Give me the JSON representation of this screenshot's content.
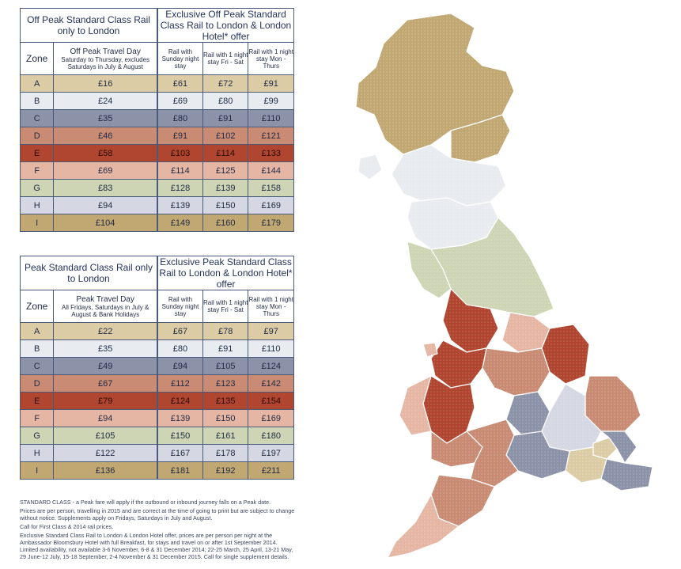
{
  "offpeak": {
    "left_title": "Off Peak Standard Class Rail only to London",
    "right_title": "Exclusive Off Peak Standard Class Rail to London & London Hotel* offer",
    "zone_header": "Zone",
    "travel_title": "Off Peak Travel Day",
    "travel_sub": "Saturday to Thursday, excludes Saturdays in July & August",
    "col3": "Rail with Sunday night stay",
    "col4": "Rail with 1 night stay Fri - Sat",
    "col5": "Rail with 1 night stay Mon - Thurs",
    "rows": [
      {
        "zone": "A",
        "rail": "£16",
        "sun": "£61",
        "frisat": "£72",
        "monthu": "£91"
      },
      {
        "zone": "B",
        "rail": "£24",
        "sun": "£69",
        "frisat": "£80",
        "monthu": "£99"
      },
      {
        "zone": "C",
        "rail": "£35",
        "sun": "£80",
        "frisat": "£91",
        "monthu": "£110"
      },
      {
        "zone": "D",
        "rail": "£46",
        "sun": "£91",
        "frisat": "£102",
        "monthu": "£121"
      },
      {
        "zone": "E",
        "rail": "£58",
        "sun": "£103",
        "frisat": "£114",
        "monthu": "£133"
      },
      {
        "zone": "F",
        "rail": "£69",
        "sun": "£114",
        "frisat": "£125",
        "monthu": "£144"
      },
      {
        "zone": "G",
        "rail": "£83",
        "sun": "£128",
        "frisat": "£139",
        "monthu": "£158"
      },
      {
        "zone": "H",
        "rail": "£94",
        "sun": "£139",
        "frisat": "£150",
        "monthu": "£169"
      },
      {
        "zone": "I",
        "rail": "£104",
        "sun": "£149",
        "frisat": "£160",
        "monthu": "£179"
      }
    ]
  },
  "peak": {
    "left_title": "Peak Standard Class Rail only to London",
    "right_title": "Exclusive Peak Standard Class Rail to London & London Hotel* offer",
    "zone_header": "Zone",
    "travel_title": "Peak Travel Day",
    "travel_sub": "All Fridays, Saturdays in July & August & Bank Holidays",
    "col3": "Rail with Sunday night stay",
    "col4": "Rail with 1 night stay Fri - Sat",
    "col5": "Rail with 1 night stay Mon - Thurs",
    "rows": [
      {
        "zone": "A",
        "rail": "£22",
        "sun": "£67",
        "frisat": "£78",
        "monthu": "£97"
      },
      {
        "zone": "B",
        "rail": "£35",
        "sun": "£80",
        "frisat": "£91",
        "monthu": "£110"
      },
      {
        "zone": "C",
        "rail": "£49",
        "sun": "£94",
        "frisat": "£105",
        "monthu": "£124"
      },
      {
        "zone": "D",
        "rail": "£67",
        "sun": "£112",
        "frisat": "£123",
        "monthu": "£142"
      },
      {
        "zone": "E",
        "rail": "£79",
        "sun": "£124",
        "frisat": "£135",
        "monthu": "£154"
      },
      {
        "zone": "F",
        "rail": "£94",
        "sun": "£139",
        "frisat": "£150",
        "monthu": "£169"
      },
      {
        "zone": "G",
        "rail": "£105",
        "sun": "£150",
        "frisat": "£161",
        "monthu": "£180"
      },
      {
        "zone": "H",
        "rail": "£122",
        "sun": "£167",
        "frisat": "£178",
        "monthu": "£197"
      },
      {
        "zone": "I",
        "rail": "£136",
        "sun": "£181",
        "frisat": "£192",
        "monthu": "£211"
      }
    ]
  },
  "zone_colors": {
    "A": "#dccca6",
    "B": "#e8ecf0",
    "C": "#8c93a8",
    "D": "#c98b74",
    "E": "#b0462f",
    "F": "#e6b6a4",
    "G": "#cdd5b4",
    "H": "#d5d8e3",
    "I": "#c1a873"
  },
  "footnotes": {
    "p1": "STANDARD CLASS - a Peak fare will apply if the outbound or inbound journey falls on a Peak date.",
    "p2": "Prices are per person, travelling in 2015 and are correct at the time of going to print but are subject to change without notice. Supplements apply on Fridays, Saturdays in July and August.",
    "p3": "Call for First Class & 2014 rail prices.",
    "p4": "Exclusive Standard Class Rail to London & London Hotel offer, prices are per person per night at the Ambassador Bloomsbury Hotel with full Breakfast, for stays and travel on or after 1st September 2014. Limited availability, not available 3-6 November, 6-8 & 31 December 2014; 22-25 March, 25 April, 13-21 May, 29 June-12 July, 15-18 September, 2-4 November & 31 December 2015. Call for single supplement details."
  }
}
